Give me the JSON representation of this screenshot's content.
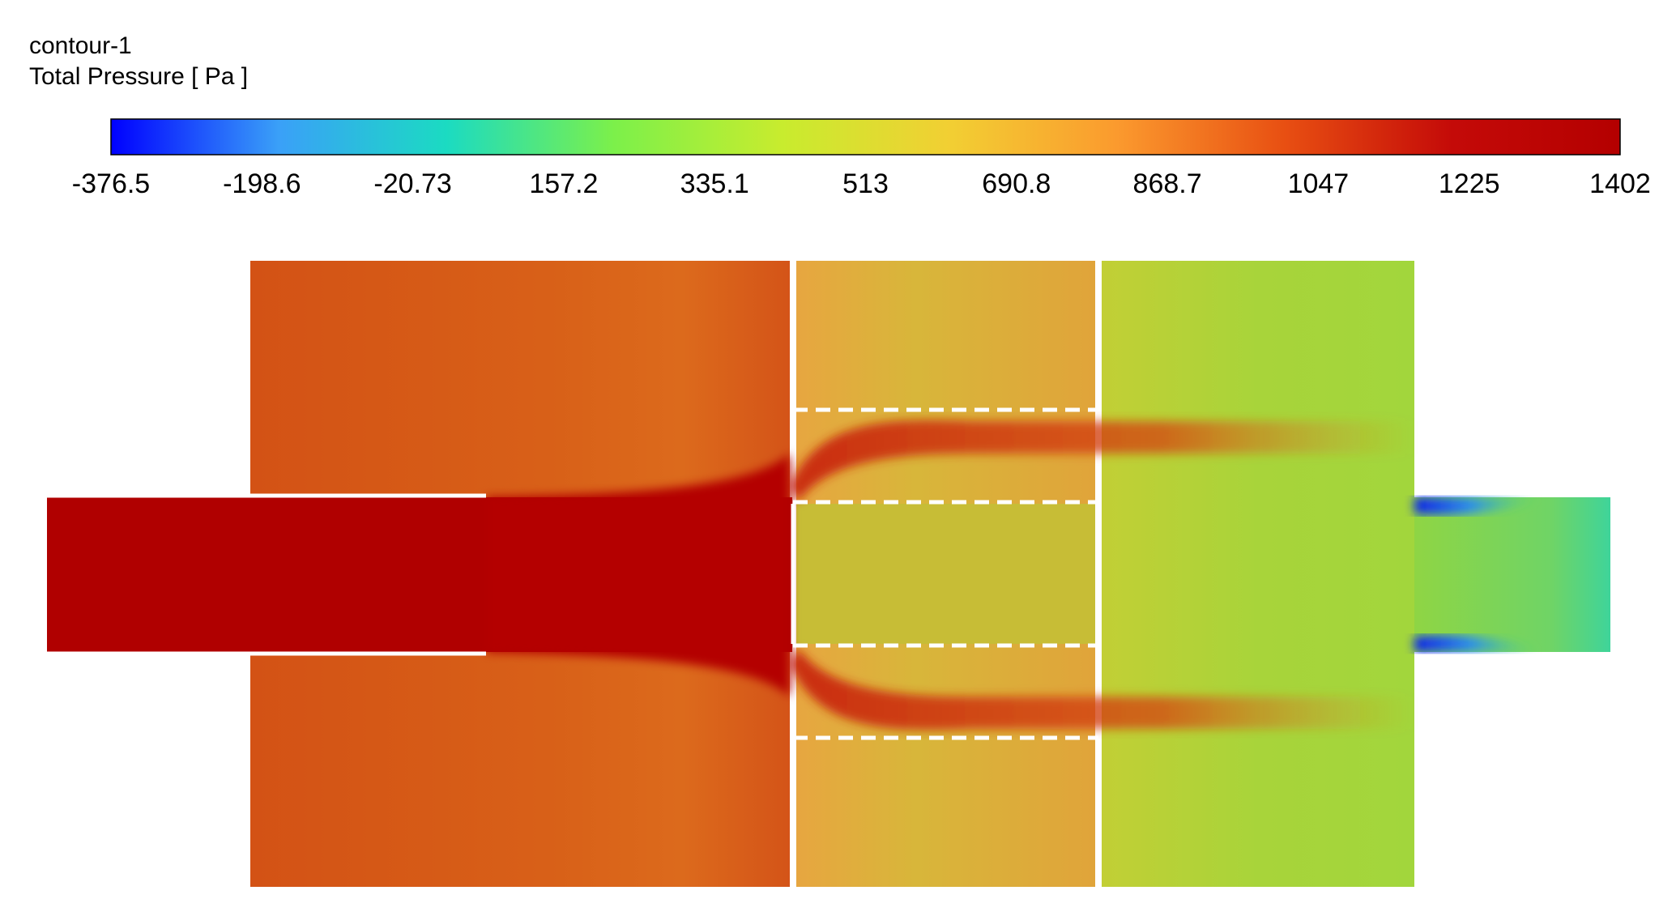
{
  "chart_data": {
    "type": "heatmap",
    "title": "contour-1",
    "variable_label": "Total Pressure [ Pa ]",
    "colormap": {
      "min": -376.5,
      "max": 1402,
      "stops": [
        "#0000ff",
        "#3aa0f8",
        "#1bdbc2",
        "#7cf04a",
        "#c8ec2e",
        "#f2cf33",
        "#fb9a2e",
        "#e84f12",
        "#c40a08",
        "#b40000"
      ],
      "tick_labels": [
        "-376.5",
        "-198.6",
        "-20.73",
        "157.2",
        "335.1",
        "513",
        "690.8",
        "868.7",
        "1047",
        "1225",
        "1402"
      ]
    },
    "regions": [
      {
        "name": "inlet-pipe",
        "approx_value": 1360
      },
      {
        "name": "first-chamber",
        "approx_value": 1100
      },
      {
        "name": "second-chamber",
        "approx_value": 760
      },
      {
        "name": "third-chamber",
        "approx_value": 580
      },
      {
        "name": "outlet-pipe",
        "approx_value": 450
      },
      {
        "name": "outlet-corner-vortices",
        "approx_value": -350
      }
    ]
  }
}
